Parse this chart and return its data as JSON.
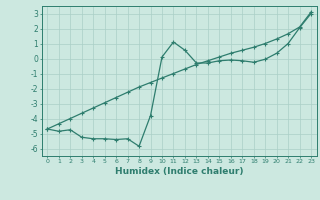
{
  "x": [
    0,
    1,
    2,
    3,
    4,
    5,
    6,
    7,
    8,
    9,
    10,
    11,
    12,
    13,
    14,
    15,
    16,
    17,
    18,
    19,
    20,
    21,
    22,
    23
  ],
  "line1": [
    -4.7,
    -4.85,
    -4.75,
    -5.25,
    -5.35,
    -5.35,
    -5.4,
    -5.35,
    -5.85,
    -3.8,
    0.1,
    1.1,
    0.55,
    -0.3,
    -0.3,
    -0.15,
    -0.1,
    -0.15,
    -0.25,
    -0.05,
    0.35,
    1.0,
    2.05,
    3.0
  ],
  "line2": [
    -4.7,
    -4.35,
    -4.0,
    -3.65,
    -3.3,
    -2.95,
    -2.6,
    -2.25,
    -1.9,
    -1.6,
    -1.3,
    -1.0,
    -0.7,
    -0.4,
    -0.15,
    0.1,
    0.35,
    0.55,
    0.75,
    1.0,
    1.3,
    1.65,
    2.1,
    3.1
  ],
  "color": "#2e7d6e",
  "bg_color": "#cce8e0",
  "grid_color": "#aacfc7",
  "xlabel": "Humidex (Indice chaleur)",
  "xlim": [
    -0.5,
    23.5
  ],
  "ylim": [
    -6.5,
    3.5
  ],
  "yticks": [
    -6,
    -5,
    -4,
    -3,
    -2,
    -1,
    0,
    1,
    2,
    3
  ],
  "xticks": [
    0,
    1,
    2,
    3,
    4,
    5,
    6,
    7,
    8,
    9,
    10,
    11,
    12,
    13,
    14,
    15,
    16,
    17,
    18,
    19,
    20,
    21,
    22,
    23
  ],
  "marker": "+",
  "markersize": 3.5,
  "linewidth": 0.9
}
